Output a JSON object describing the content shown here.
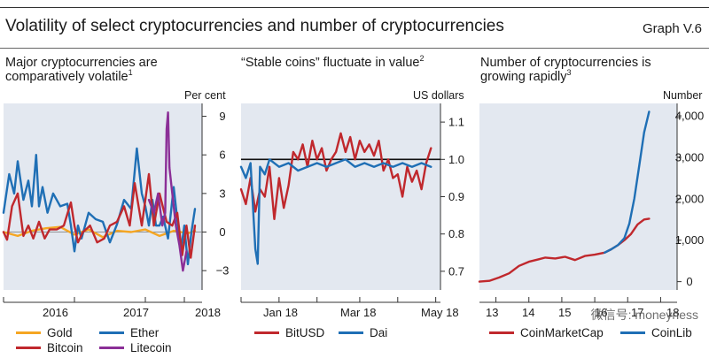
{
  "header": {
    "title": "Volatility of select cryptocurrencies and number of cryptocurrencies",
    "graph_number": "Graph V.6"
  },
  "panels": [
    {
      "subtitle_lines": [
        "Major cryptocurrencies are",
        "comparatively volatile"
      ],
      "footnote": "1",
      "unit": "Per cent",
      "legend": [
        {
          "label": "Gold",
          "color": "#f5a623"
        },
        {
          "label": "Ether",
          "color": "#1f6fb5"
        },
        {
          "label": "Bitcoin",
          "color": "#c0282d"
        },
        {
          "label": "Litecoin",
          "color": "#8b2f97"
        }
      ]
    },
    {
      "subtitle_lines": [
        "“Stable coins” fluctuate in value"
      ],
      "footnote": "2",
      "unit": "US dollars",
      "legend": [
        {
          "label": "BitUSD",
          "color": "#c0282d"
        },
        {
          "label": "Dai",
          "color": "#1f6fb5"
        }
      ]
    },
    {
      "subtitle_lines": [
        "Number of cryptocurrencies is",
        "growing rapidly"
      ],
      "footnote": "3",
      "unit": "Number",
      "legend": [
        {
          "label": "CoinMarketCap",
          "color": "#c0282d"
        },
        {
          "label": "CoinLib",
          "color": "#1f6fb5"
        }
      ]
    }
  ],
  "watermark": "微信号: moneyness",
  "chart_data": [
    {
      "type": "line",
      "x_ticks": [
        "2016",
        "2017",
        "2018"
      ],
      "y_ticks": [
        9,
        6,
        3,
        0,
        -3
      ],
      "ylim": [
        -4.5,
        10
      ],
      "xlim": [
        2015.5,
        2018.3
      ],
      "y_axis_side": "right",
      "grid": false,
      "series": [
        {
          "name": "Gold",
          "color": "#f5a623",
          "x": [
            2015.5,
            2015.7,
            2015.9,
            2016.1,
            2016.3,
            2016.5,
            2016.7,
            2016.9,
            2017.1,
            2017.3,
            2017.5,
            2017.7,
            2017.9,
            2018.1,
            2018.2
          ],
          "y": [
            0.0,
            -0.3,
            0.1,
            0.3,
            0.4,
            -0.2,
            0.2,
            -0.4,
            0.1,
            0.0,
            0.2,
            -0.3,
            0.1,
            -0.1,
            0.1
          ]
        },
        {
          "name": "Ether",
          "color": "#1f6fb5",
          "x": [
            2015.5,
            2015.58,
            2015.65,
            2015.7,
            2015.78,
            2015.85,
            2015.9,
            2015.96,
            2016.0,
            2016.05,
            2016.12,
            2016.2,
            2016.3,
            2016.4,
            2016.45,
            2016.5,
            2016.55,
            2016.6,
            2016.7,
            2016.8,
            2016.9,
            2017.0,
            2017.1,
            2017.2,
            2017.3,
            2017.38,
            2017.45,
            2017.5,
            2017.55,
            2017.6,
            2017.65,
            2017.7,
            2017.75,
            2017.82,
            2017.9,
            2017.95,
            2018.0,
            2018.05,
            2018.1,
            2018.15,
            2018.2
          ],
          "y": [
            1.5,
            4.5,
            3.0,
            5.5,
            2.5,
            4.0,
            2.0,
            6.0,
            2.0,
            3.5,
            1.5,
            3.0,
            2.0,
            2.2,
            0.5,
            -1.5,
            0.5,
            -0.5,
            1.5,
            1.0,
            0.8,
            -0.8,
            0.6,
            2.5,
            1.8,
            6.5,
            3.0,
            2.0,
            0.5,
            2.5,
            0.5,
            0.5,
            1.2,
            -0.5,
            3.5,
            1.0,
            -1.5,
            0.5,
            -2.5,
            0.0,
            1.8
          ]
        },
        {
          "name": "Bitcoin",
          "color": "#c0282d",
          "x": [
            2015.5,
            2015.55,
            2015.62,
            2015.7,
            2015.78,
            2015.85,
            2015.92,
            2016.0,
            2016.08,
            2016.15,
            2016.25,
            2016.35,
            2016.45,
            2016.5,
            2016.55,
            2016.62,
            2016.72,
            2016.82,
            2016.92,
            2017.0,
            2017.1,
            2017.2,
            2017.28,
            2017.35,
            2017.45,
            2017.55,
            2017.62,
            2017.7,
            2017.8,
            2017.88,
            2017.95,
            2018.02,
            2018.08,
            2018.14,
            2018.2
          ],
          "y": [
            0.0,
            -0.6,
            2.0,
            3.0,
            -0.3,
            0.5,
            -0.5,
            0.8,
            -0.5,
            0.2,
            0.2,
            0.5,
            2.3,
            0.5,
            -0.8,
            0.0,
            0.5,
            -0.8,
            -0.5,
            0.5,
            0.8,
            2.0,
            0.5,
            3.8,
            0.5,
            4.5,
            0.5,
            3.0,
            0.8,
            0.5,
            1.5,
            -1.8,
            0.5,
            -2.0,
            0.5
          ]
        },
        {
          "name": "Litecoin",
          "color": "#8b2f97",
          "x": [
            2017.55,
            2017.62,
            2017.68,
            2017.74,
            2017.78,
            2017.8,
            2017.82,
            2017.84,
            2017.88,
            2017.93,
            2017.98,
            2018.03,
            2018.08
          ],
          "y": [
            2.5,
            1.5,
            3.0,
            0.5,
            1.5,
            8.0,
            9.3,
            5.0,
            3.0,
            0.5,
            -1.0,
            -3.0,
            -1.5
          ]
        }
      ]
    },
    {
      "type": "line",
      "x_ticks": [
        "Jan 18",
        "Mar 18",
        "May 18"
      ],
      "y_ticks": [
        1.1,
        1.0,
        0.9,
        0.8,
        0.7
      ],
      "ylim": [
        0.65,
        1.15
      ],
      "xlim": [
        2018.0,
        2018.42
      ],
      "y_axis_side": "right",
      "reference_line": 1.0,
      "grid": false,
      "series": [
        {
          "name": "BitUSD",
          "color": "#c0282d",
          "x": [
            2018.0,
            2018.01,
            2018.02,
            2018.03,
            2018.04,
            2018.05,
            2018.06,
            2018.07,
            2018.08,
            2018.09,
            2018.1,
            2018.11,
            2018.12,
            2018.13,
            2018.14,
            2018.15,
            2018.16,
            2018.17,
            2018.18,
            2018.19,
            2018.2,
            2018.21,
            2018.22,
            2018.23,
            2018.24,
            2018.25,
            2018.26,
            2018.27,
            2018.28,
            2018.29,
            2018.3,
            2018.31,
            2018.32,
            2018.33,
            2018.34,
            2018.35,
            2018.36,
            2018.37,
            2018.38,
            2018.39,
            2018.4
          ],
          "y": [
            0.92,
            0.88,
            0.95,
            0.86,
            0.92,
            0.9,
            0.98,
            0.84,
            0.95,
            0.87,
            0.93,
            1.02,
            1.0,
            1.04,
            0.98,
            1.05,
            1.0,
            1.03,
            0.97,
            1.0,
            1.02,
            1.07,
            1.02,
            1.06,
            1.0,
            1.05,
            1.02,
            1.04,
            1.01,
            1.05,
            0.97,
            1.0,
            0.95,
            0.96,
            0.9,
            0.98,
            0.94,
            0.97,
            0.92,
            0.99,
            1.03
          ]
        },
        {
          "name": "Dai",
          "color": "#1f6fb5",
          "x": [
            2018.0,
            2018.01,
            2018.02,
            2018.03,
            2018.035,
            2018.04,
            2018.05,
            2018.06,
            2018.08,
            2018.1,
            2018.12,
            2018.14,
            2018.16,
            2018.18,
            2018.2,
            2018.22,
            2018.24,
            2018.26,
            2018.28,
            2018.3,
            2018.32,
            2018.34,
            2018.36,
            2018.38,
            2018.4
          ],
          "y": [
            0.98,
            0.95,
            0.99,
            0.76,
            0.72,
            0.98,
            0.96,
            1.0,
            0.98,
            0.99,
            0.97,
            0.98,
            0.99,
            0.98,
            0.99,
            1.0,
            0.98,
            0.99,
            0.98,
            0.99,
            0.98,
            0.99,
            0.98,
            0.99,
            0.98
          ]
        }
      ]
    },
    {
      "type": "line",
      "x_ticks": [
        "13",
        "14",
        "15",
        "16",
        "17",
        "18"
      ],
      "y_ticks": [
        4000,
        3000,
        2000,
        1000,
        0
      ],
      "ylim": [
        -200,
        4300
      ],
      "xlim": [
        2013.0,
        2019.0
      ],
      "y_axis_side": "right",
      "grid": false,
      "series": [
        {
          "name": "CoinMarketCap",
          "color": "#c0282d",
          "x": [
            2013.0,
            2013.3,
            2013.6,
            2013.9,
            2014.2,
            2014.5,
            2014.8,
            2015.0,
            2015.3,
            2015.6,
            2015.9,
            2016.2,
            2016.5,
            2016.8,
            2017.0,
            2017.2,
            2017.4,
            2017.6,
            2017.8,
            2018.0,
            2018.15
          ],
          "y": [
            0,
            20,
            100,
            200,
            380,
            480,
            540,
            580,
            560,
            600,
            520,
            620,
            650,
            700,
            780,
            880,
            1000,
            1150,
            1380,
            1500,
            1520
          ]
        },
        {
          "name": "CoinLib",
          "color": "#1f6fb5",
          "x": [
            2016.8,
            2017.0,
            2017.2,
            2017.4,
            2017.55,
            2017.7,
            2017.85,
            2018.0,
            2018.15
          ],
          "y": [
            700,
            780,
            880,
            1050,
            1400,
            2000,
            2800,
            3600,
            4100
          ]
        }
      ]
    }
  ]
}
